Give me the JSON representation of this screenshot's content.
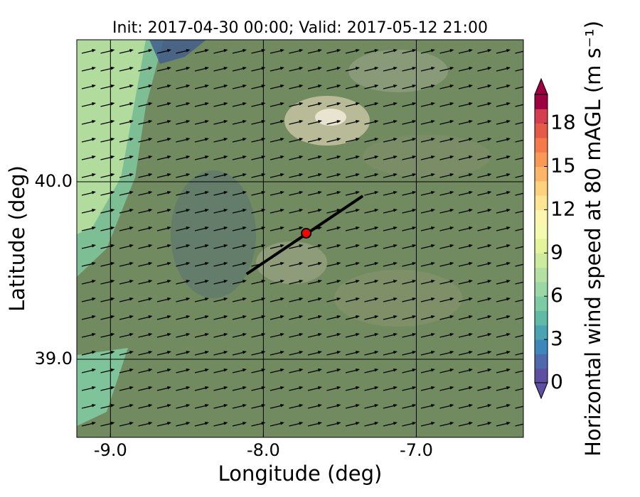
{
  "chart_data": {
    "type": "map",
    "title": "Init: 2017-04-30 00:00; Valid: 2017-05-12 21:00",
    "xlabel": "Longitude (deg)",
    "ylabel": "Latitude (deg)",
    "xlim": [
      -9.22,
      -6.3
    ],
    "ylim": [
      38.56,
      40.8
    ],
    "xticks": [
      {
        "value": -9,
        "label": "-9.0"
      },
      {
        "value": -8,
        "label": "-8.0"
      },
      {
        "value": -7,
        "label": "-7.0"
      }
    ],
    "yticks": [
      {
        "value": 39,
        "label": "39.0"
      },
      {
        "value": 40,
        "label": "40.0"
      }
    ],
    "grid": true,
    "transect": {
      "lon": [
        -8.11,
        -7.35
      ],
      "lat": [
        39.48,
        39.92
      ],
      "color": "#000000"
    },
    "site": {
      "lon": -7.72,
      "lat": 39.71,
      "color": "#ff0000"
    },
    "colorbar": {
      "label": "Horizontal wind speed at 80 mAGL (m s⁻¹)",
      "lim": [
        0,
        20
      ],
      "ticks": [
        0,
        3,
        6,
        9,
        12,
        15,
        18
      ],
      "colors": [
        "#5e4fa2",
        "#4f69ae",
        "#3f86bc",
        "#4aa3b2",
        "#5fbaa8",
        "#7ccba5",
        "#99d7a4",
        "#b4e1a2",
        "#cdeb9c",
        "#e3f49b",
        "#f4fbae",
        "#fef5af",
        "#fee593",
        "#fed17c",
        "#fdb567",
        "#fa9856",
        "#f47a4a",
        "#e65b48",
        "#d53e4f",
        "#9e0142"
      ]
    }
  }
}
